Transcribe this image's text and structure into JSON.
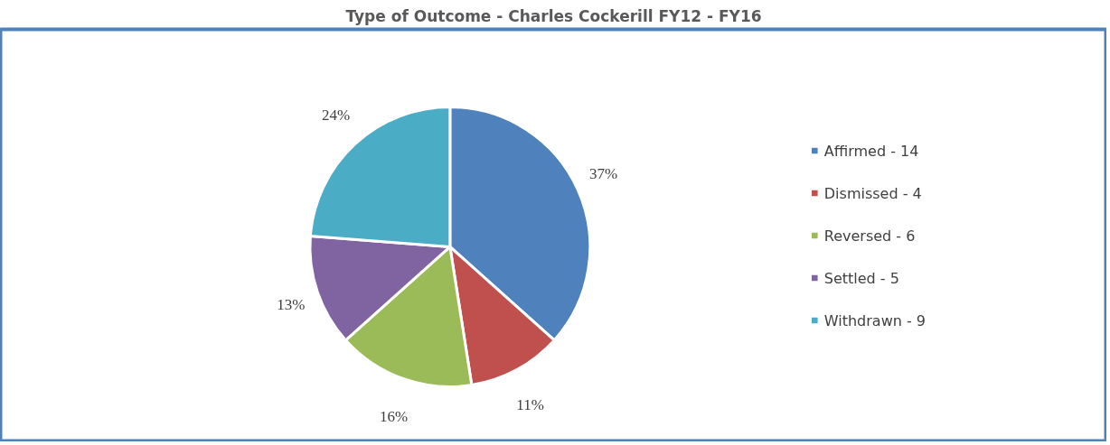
{
  "chart_data": {
    "type": "pie",
    "title": "Type of Outcome - Charles Cockerill FY12 - FY16",
    "categories": [
      "Affirmed - 14",
      "Dismissed - 4",
      "Reversed - 6",
      "Settled - 5",
      "Withdrawn - 9"
    ],
    "values": [
      37,
      11,
      16,
      13,
      24
    ],
    "value_labels": [
      "37%",
      "11%",
      "16%",
      "13%",
      "24%"
    ],
    "colors": [
      "#4f81bd",
      "#c0504d",
      "#9bbb59",
      "#8064a2",
      "#4bacc6"
    ],
    "legend": "right"
  }
}
